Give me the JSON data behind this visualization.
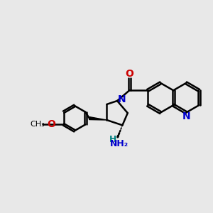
{
  "bg_color": "#e8e8e8",
  "bond_color": "#000000",
  "bond_width": 1.8,
  "n_color": "#0000cc",
  "o_color": "#cc0000",
  "nh2_color": "#008080",
  "figsize": [
    3.0,
    3.0
  ],
  "dpi": 100,
  "xlim": [
    0,
    12
  ],
  "ylim": [
    0,
    10
  ]
}
